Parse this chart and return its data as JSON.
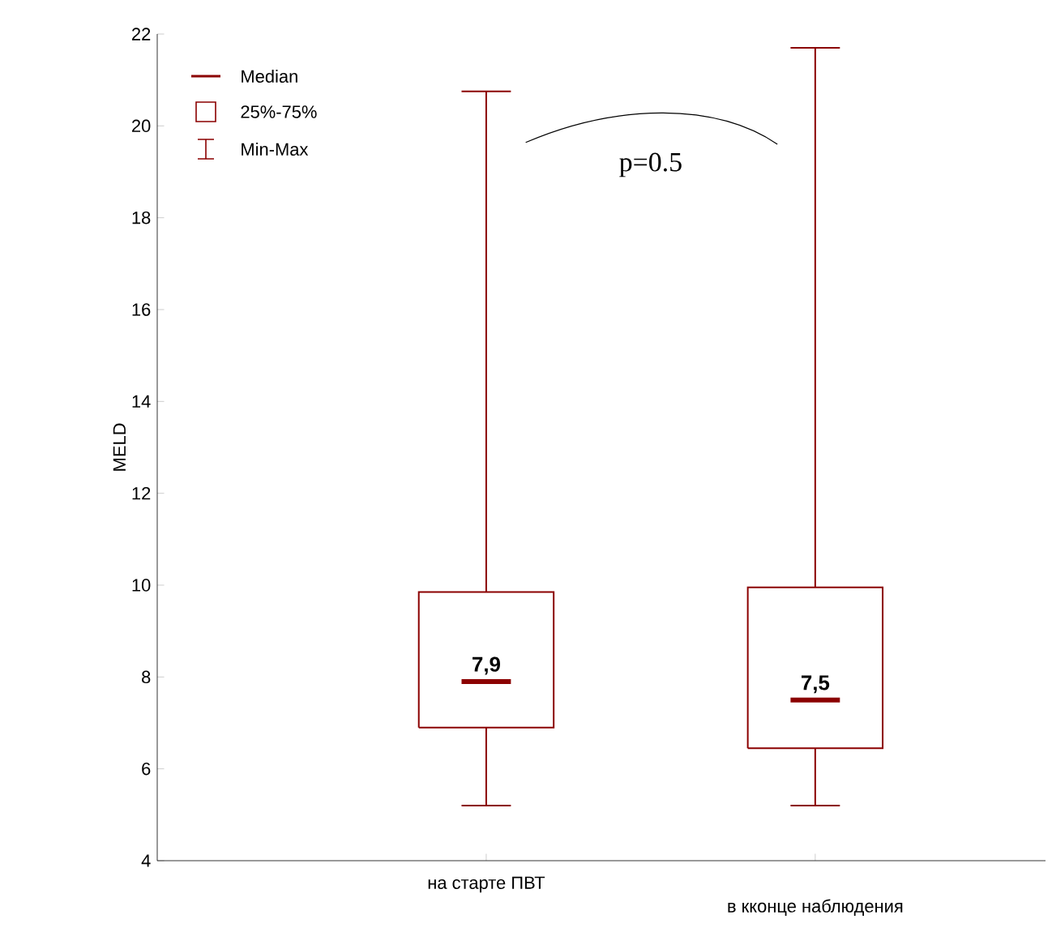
{
  "chart_data": {
    "type": "box",
    "ylabel": "MELD",
    "categories": [
      "на старте ПВТ",
      "в кконце наблюдения"
    ],
    "boxes": [
      {
        "low": 5.2,
        "q1": 6.9,
        "median": 7.9,
        "q3": 9.85,
        "high": 20.75
      },
      {
        "low": 5.2,
        "q1": 6.45,
        "median": 7.5,
        "q3": 9.95,
        "high": 21.7
      }
    ],
    "color": "#8b0000",
    "value_labels": [
      "7,9",
      "7,5"
    ],
    "ylim": [
      4,
      22
    ],
    "yticks": [
      4,
      6,
      8,
      10,
      12,
      14,
      16,
      18,
      20,
      22
    ],
    "grid": false,
    "annotations": [
      "Median",
      "25%-75%",
      "Min-Max",
      "p=0.5"
    ]
  }
}
